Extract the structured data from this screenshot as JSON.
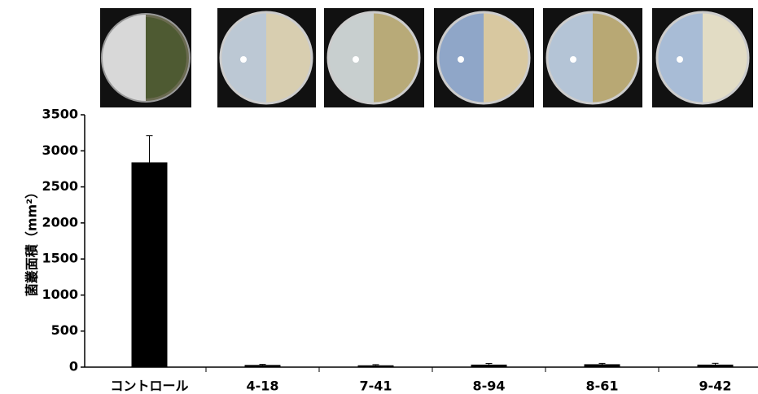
{
  "chart_data": {
    "type": "bar",
    "y_label": "菌叢面積（mm²）",
    "categories": [
      "コントロール",
      "4-18",
      "7-41",
      "8-94",
      "8-61",
      "9-42"
    ],
    "values": [
      2840,
      30,
      25,
      35,
      40,
      35
    ],
    "errors": [
      370,
      8,
      10,
      15,
      12,
      18
    ],
    "color": "#000000",
    "ylim": [
      0,
      3500
    ],
    "yticks": [
      0,
      500,
      1000,
      1500,
      2000,
      2500,
      3000,
      3500
    ],
    "grid": false
  }
}
